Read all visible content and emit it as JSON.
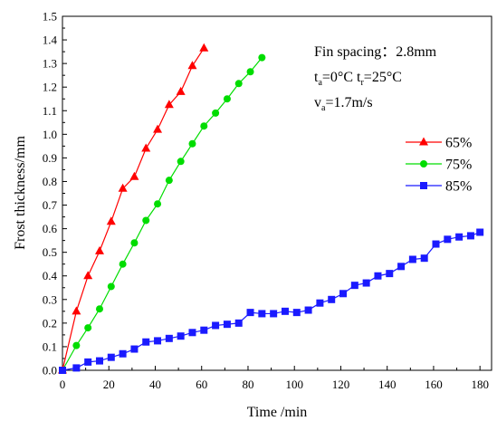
{
  "chart_data": {
    "type": "line",
    "xlabel": "Time /min",
    "ylabel": "Frost thickness/mm",
    "xlim": [
      0,
      185
    ],
    "ylim": [
      0,
      1.5
    ],
    "xticks": [
      0,
      20,
      40,
      60,
      80,
      100,
      120,
      140,
      160,
      180
    ],
    "xtick_labels": [
      "0",
      "20",
      "40",
      "60",
      "80",
      "100",
      "120",
      "140",
      "160",
      "180"
    ],
    "yticks": [
      0,
      0.1,
      0.2,
      0.3,
      0.4,
      0.5,
      0.6,
      0.7,
      0.8,
      0.9,
      1.0,
      1.1,
      1.2,
      1.3,
      1.4,
      1.5
    ],
    "ytick_labels": [
      "0.0",
      "0.1",
      "0.2",
      "0.3",
      "0.4",
      "0.5",
      "0.6",
      "0.7",
      "0.8",
      "0.9",
      "1.0",
      "1.1",
      "1.2",
      "1.3",
      "1.4",
      "1.5"
    ],
    "grid": false,
    "legend_position": "right",
    "annotations": {
      "line1": "Fin spacing：2.8mm",
      "line2": {
        "t": "t",
        "a_sub": "a",
        "ta_val": "=0°C t",
        "r_sub": "r",
        "tr_val": "=25°C"
      },
      "line3": {
        "v": "v",
        "a_sub": "a",
        "va_val": "=1.7m/s"
      }
    },
    "series": [
      {
        "name": "65%",
        "color": "#ff0000",
        "marker": "triangle",
        "x": [
          0,
          6,
          11,
          16,
          21,
          26,
          31,
          36,
          41,
          46,
          51,
          56,
          61
        ],
        "y": [
          0,
          0.25,
          0.4,
          0.505,
          0.63,
          0.77,
          0.82,
          0.94,
          1.02,
          1.125,
          1.18,
          1.29,
          1.365
        ]
      },
      {
        "name": "75%",
        "color": "#00dd00",
        "marker": "circle",
        "x": [
          0,
          6,
          11,
          16,
          21,
          26,
          31,
          36,
          41,
          46,
          51,
          56,
          61,
          66,
          71,
          76,
          81,
          86
        ],
        "y": [
          0,
          0.105,
          0.18,
          0.26,
          0.355,
          0.45,
          0.54,
          0.635,
          0.705,
          0.805,
          0.885,
          0.96,
          1.035,
          1.09,
          1.15,
          1.215,
          1.265,
          1.325
        ]
      },
      {
        "name": "85%",
        "color": "#1a1aff",
        "marker": "square",
        "x": [
          0,
          6,
          11,
          16,
          21,
          26,
          31,
          36,
          41,
          46,
          51,
          56,
          61,
          66,
          71,
          76,
          81,
          86,
          91,
          96,
          101,
          106,
          111,
          116,
          121,
          126,
          131,
          136,
          141,
          146,
          151,
          156,
          161,
          166,
          171,
          176,
          180
        ],
        "y": [
          0,
          0.01,
          0.035,
          0.04,
          0.055,
          0.07,
          0.09,
          0.12,
          0.125,
          0.135,
          0.145,
          0.16,
          0.17,
          0.19,
          0.195,
          0.2,
          0.245,
          0.24,
          0.24,
          0.25,
          0.245,
          0.255,
          0.285,
          0.3,
          0.325,
          0.36,
          0.37,
          0.4,
          0.41,
          0.44,
          0.47,
          0.475,
          0.535,
          0.555,
          0.565,
          0.57,
          0.585
        ]
      }
    ]
  }
}
